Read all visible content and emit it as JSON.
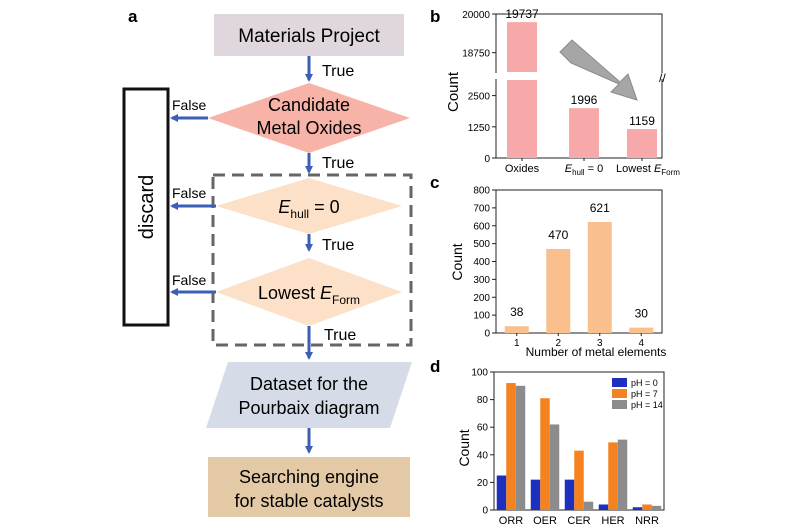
{
  "panel_labels": {
    "a": "a",
    "b": "b",
    "c": "c",
    "d": "d"
  },
  "flowchart": {
    "materials_project": "Materials Project",
    "candidate_line1": "Candidate",
    "candidate_line2": "Metal Oxides",
    "ehull_main": "E",
    "ehull_sub": "hull",
    "ehull_rest": " = 0",
    "lowest_main": "Lowest ",
    "lowest_e": "E",
    "lowest_sub": "Form",
    "dataset_line1": "Dataset for the",
    "dataset_line2": "Pourbaix diagram",
    "search_line1": "Searching engine",
    "search_line2": "for stable catalysts",
    "discard": "discard",
    "true_label": "True",
    "false_label": "False"
  },
  "chart_data": [
    {
      "type": "bar",
      "panel": "b",
      "categories": [
        "Oxides",
        "Ehull = 0",
        "Lowest EForm"
      ],
      "values": [
        19737,
        1996,
        1159
      ],
      "data_labels": [
        "19737",
        "1996",
        "1159"
      ],
      "ylabel": "Count",
      "yticks": [
        "20000",
        "18750",
        "2500",
        "1250",
        "0"
      ],
      "broken_axis": true,
      "color": "#f7a9a9"
    },
    {
      "type": "bar",
      "panel": "c",
      "categories": [
        "1",
        "2",
        "3",
        "4"
      ],
      "values": [
        38,
        470,
        621,
        30
      ],
      "data_labels": [
        "38",
        "470",
        "621",
        "30"
      ],
      "xlabel": "Number of metal elements",
      "ylabel": "Count",
      "ylim": [
        0,
        800
      ],
      "yticks": [
        "0",
        "100",
        "200",
        "300",
        "400",
        "500",
        "600",
        "700",
        "800"
      ],
      "color": "#f9c08e"
    },
    {
      "type": "bar",
      "panel": "d",
      "categories": [
        "ORR",
        "OER",
        "CER",
        "HER",
        "NRR"
      ],
      "series": [
        {
          "name": "pH = 0",
          "values": [
            25,
            22,
            22,
            4,
            2
          ],
          "color": "#1d2fbf"
        },
        {
          "name": "pH = 7",
          "values": [
            92,
            81,
            43,
            49,
            4
          ],
          "color": "#f58220"
        },
        {
          "name": "pH = 14",
          "values": [
            90,
            62,
            6,
            51,
            3
          ],
          "color": "#8c8c8c"
        }
      ],
      "ylabel": "Count",
      "ylim": [
        0,
        100
      ],
      "yticks": [
        "0",
        "20",
        "40",
        "60",
        "80",
        "100"
      ],
      "legend": "top-right"
    }
  ]
}
